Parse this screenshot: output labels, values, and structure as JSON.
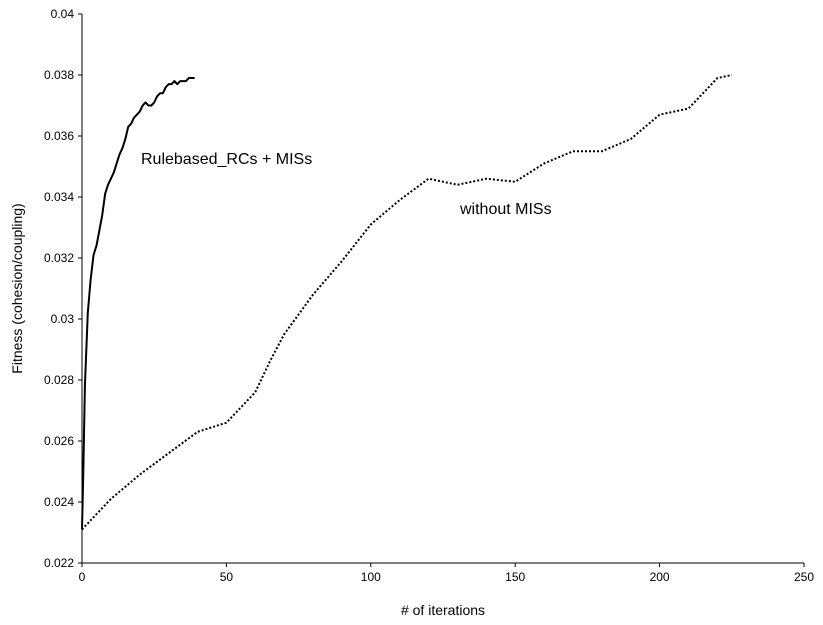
{
  "chart_data": {
    "type": "line",
    "title": "",
    "xlabel": "# of iterations",
    "ylabel": "Fitness (cohesion/coupling)",
    "xlim": [
      0,
      250
    ],
    "ylim": [
      0.022,
      0.04
    ],
    "xticks": [
      0,
      50,
      100,
      150,
      200,
      250
    ],
    "xtick_labels": [
      "0",
      "50",
      "100",
      "150",
      "200",
      "250"
    ],
    "yticks": [
      0.022,
      0.024,
      0.026,
      0.028,
      0.03,
      0.032,
      0.034,
      0.036,
      0.038,
      0.04
    ],
    "ytick_labels": [
      "0.022",
      "0.024",
      "0.026",
      "0.028",
      "0.03",
      "0.032",
      "0.034",
      "0.036",
      "0.038",
      "0.04"
    ],
    "grid": false,
    "annotations": [
      {
        "text": "Rulebased_RCs + MISs",
        "series": "Rulebased_RCs + MISs"
      },
      {
        "text": "without MISs",
        "series": "without MISs"
      }
    ],
    "series": [
      {
        "name": "Rulebased_RCs + MISs",
        "style": "solid",
        "color": "#000000",
        "x": [
          0,
          0.5,
          1,
          2,
          3,
          4,
          5,
          6,
          7,
          8,
          9,
          10,
          11,
          12,
          13,
          14,
          15,
          16,
          17,
          18,
          19,
          20,
          21,
          22,
          23,
          24,
          25,
          26,
          27,
          28,
          29,
          30,
          31,
          32,
          33,
          34,
          35,
          36,
          37,
          38,
          39
        ],
        "y": [
          0.0231,
          0.0252,
          0.0278,
          0.0302,
          0.0313,
          0.0321,
          0.0324,
          0.0329,
          0.0334,
          0.0341,
          0.0344,
          0.0346,
          0.0348,
          0.0351,
          0.0354,
          0.0356,
          0.0359,
          0.0363,
          0.0364,
          0.0366,
          0.0367,
          0.0368,
          0.037,
          0.0371,
          0.037,
          0.037,
          0.0371,
          0.0373,
          0.0374,
          0.0374,
          0.0376,
          0.0377,
          0.0377,
          0.0378,
          0.0377,
          0.0378,
          0.0378,
          0.0378,
          0.0379,
          0.0379,
          0.0379
        ]
      },
      {
        "name": "without MISs",
        "style": "dotted",
        "color": "#000000",
        "x": [
          0,
          10,
          20,
          30,
          40,
          50,
          55,
          60,
          65,
          70,
          80,
          90,
          100,
          110,
          120,
          130,
          140,
          150,
          160,
          170,
          180,
          190,
          200,
          210,
          220,
          225
        ],
        "y": [
          0.0231,
          0.0241,
          0.0249,
          0.0256,
          0.0263,
          0.0266,
          0.0271,
          0.0276,
          0.0286,
          0.0295,
          0.0308,
          0.0319,
          0.0331,
          0.0339,
          0.0346,
          0.0344,
          0.0346,
          0.0345,
          0.0351,
          0.0355,
          0.0355,
          0.0359,
          0.0367,
          0.0369,
          0.0379,
          0.038
        ]
      }
    ]
  }
}
